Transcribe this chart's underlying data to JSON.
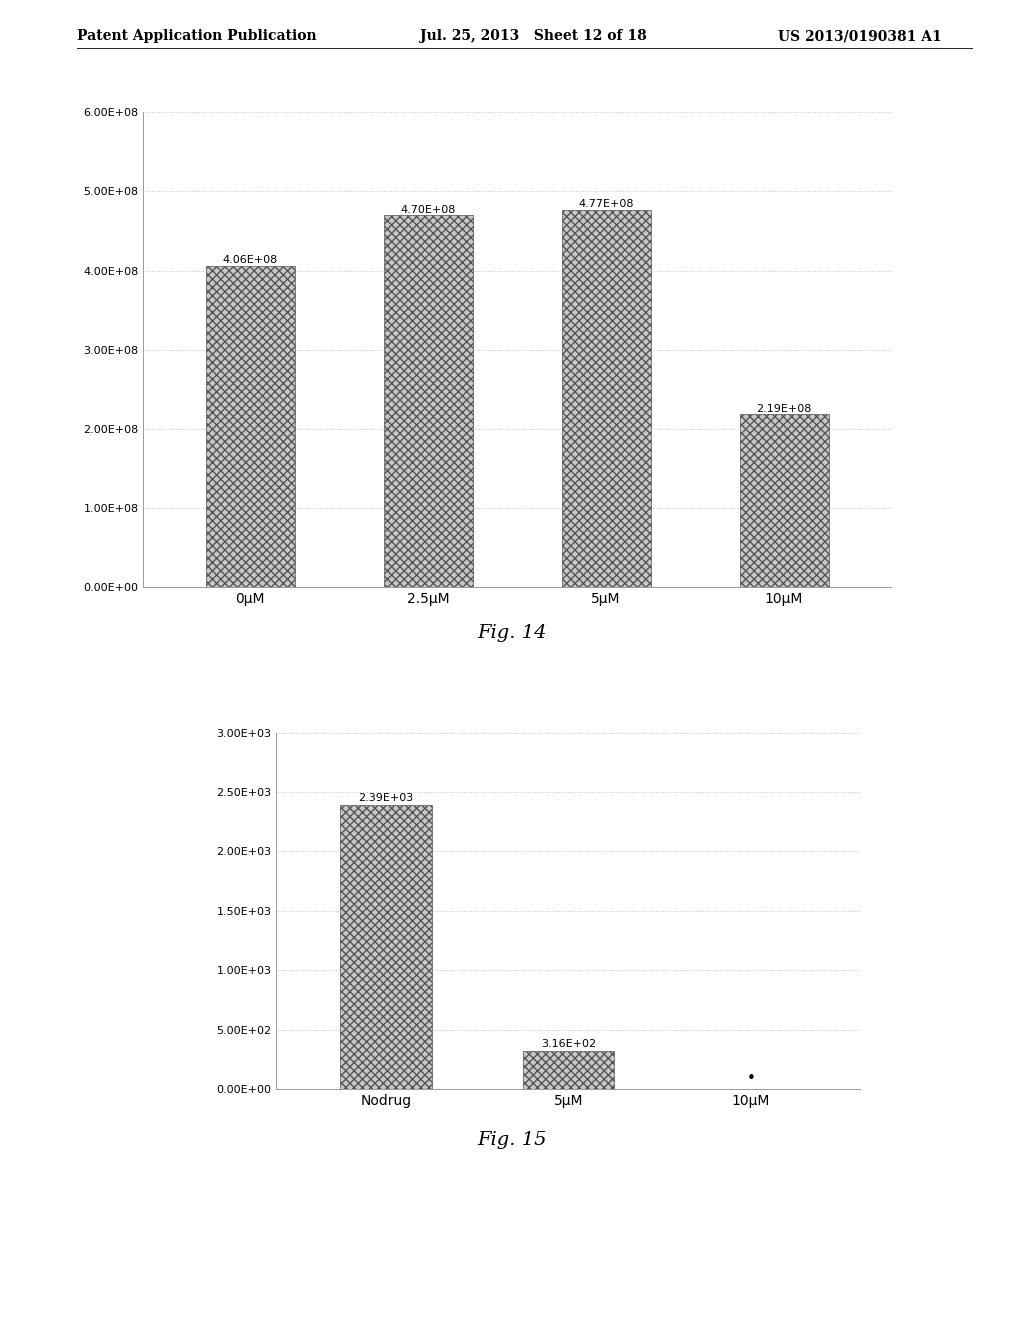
{
  "header_left": "Patent Application Publication",
  "header_mid": "Jul. 25, 2013   Sheet 12 of 18",
  "header_right": "US 2013/0190381 A1",
  "fig14_categories": [
    "0μM",
    "2.5μM",
    "5μM",
    "10μM"
  ],
  "fig14_values": [
    406000000.0,
    470000000.0,
    477000000.0,
    219000000.0
  ],
  "fig14_labels": [
    "4.06E+08",
    "4.70E+08",
    "4.77E+08",
    "2.19E+08"
  ],
  "fig14_ylim": [
    0,
    600000000.0
  ],
  "fig14_yticks": [
    0,
    100000000.0,
    200000000.0,
    300000000.0,
    400000000.0,
    500000000.0,
    600000000.0
  ],
  "fig14_ytick_labels": [
    "0.00E+00",
    "1.00E+08",
    "2.00E+08",
    "3.00E+08",
    "4.00E+08",
    "5.00E+08",
    "6.00E+08"
  ],
  "fig14_caption": "Fig. 14",
  "fig15_categories": [
    "Nodrug",
    "5μM",
    "10μM"
  ],
  "fig15_values": [
    2390,
    316,
    4
  ],
  "fig15_labels": [
    "2.39E+03",
    "3.16E+02",
    "•"
  ],
  "fig15_ylim": [
    0,
    3000
  ],
  "fig15_yticks": [
    0,
    500,
    1000,
    1500,
    2000,
    2500,
    3000
  ],
  "fig15_ytick_labels": [
    "0.00E+00",
    "5.00E+02",
    "1.00E+03",
    "1.50E+03",
    "2.00E+03",
    "2.50E+03",
    "3.00E+03"
  ],
  "fig15_caption": "Fig. 15",
  "bar_color": "#c8c8c8",
  "bar_hatch": "xxxx",
  "bar_edgecolor": "#555555",
  "background_color": "#ffffff",
  "text_color": "#000000",
  "font_size_header": 10,
  "font_size_ticks": 8,
  "font_size_bar_label": 8,
  "font_size_caption": 14
}
